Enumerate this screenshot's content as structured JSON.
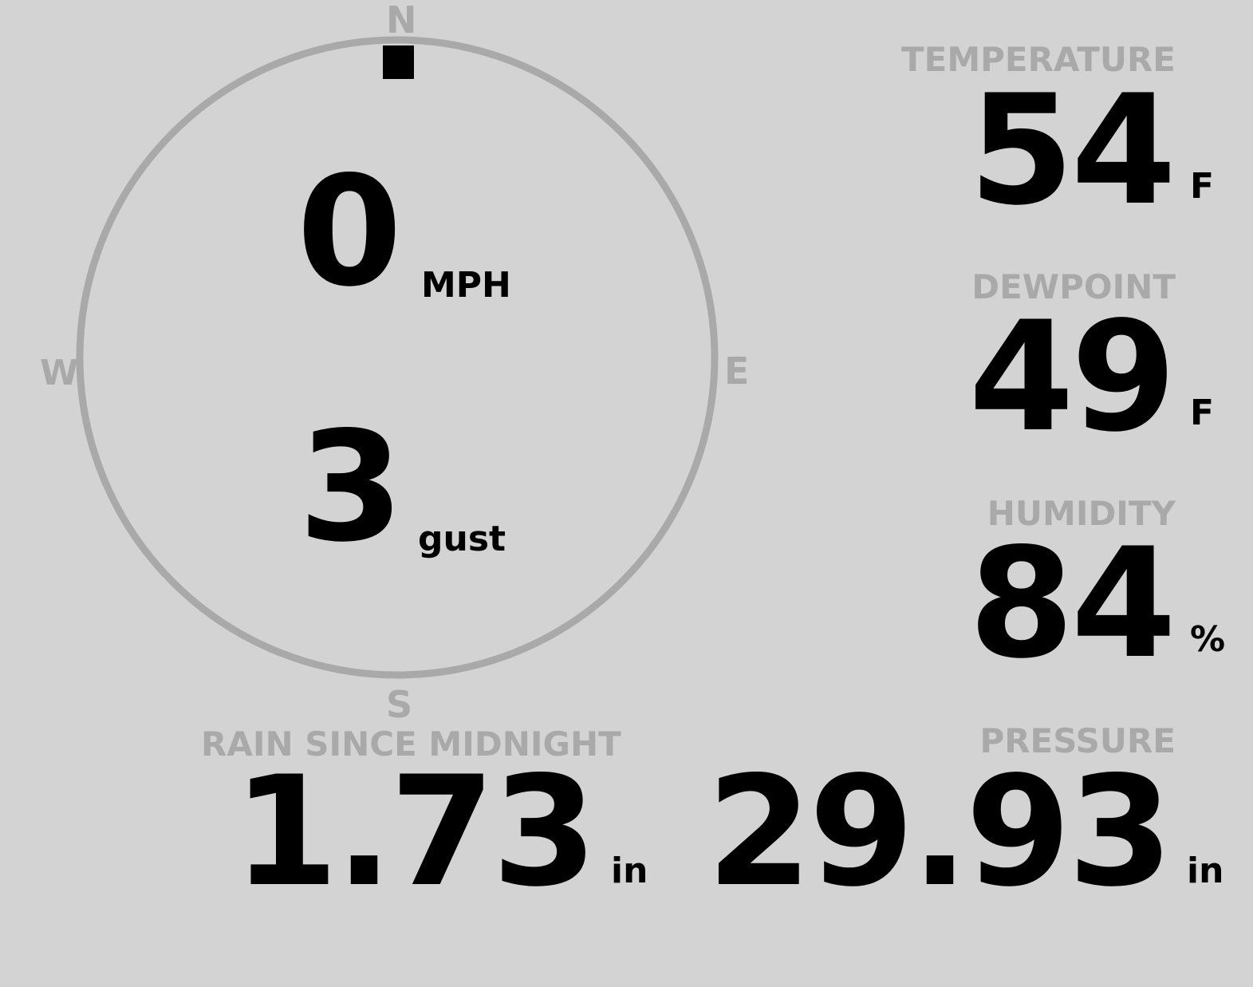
{
  "colors": {
    "background": "#d3d3d3",
    "muted": "#a9a9a9",
    "value": "#000000"
  },
  "compass": {
    "north": "N",
    "south": "S",
    "east": "E",
    "west": "W",
    "wind_direction_deg": 0,
    "wind_speed": "0",
    "wind_speed_unit": "MPH",
    "gust": "3",
    "gust_unit": "gust"
  },
  "temperature": {
    "label": "TEMPERATURE",
    "value": "54",
    "unit": "F"
  },
  "dewpoint": {
    "label": "DEWPOINT",
    "value": "49",
    "unit": "F"
  },
  "humidity": {
    "label": "HUMIDITY",
    "value": "84",
    "unit": "%"
  },
  "rain": {
    "label": "RAIN SINCE MIDNIGHT",
    "value": "1.73",
    "unit": "in"
  },
  "pressure": {
    "label": "PRESSURE",
    "value": "29.93",
    "unit": "in"
  }
}
